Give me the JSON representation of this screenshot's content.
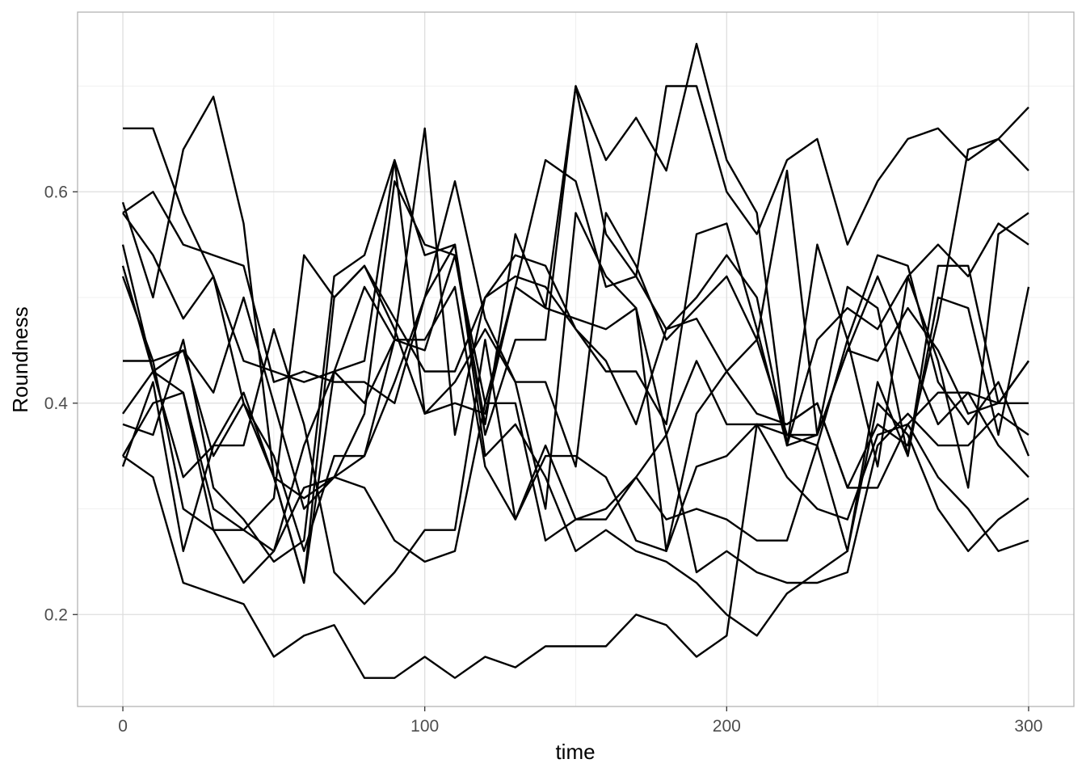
{
  "chart_data": {
    "type": "line",
    "xlabel": "time",
    "ylabel": "Roundness",
    "xlim": [
      -15,
      315
    ],
    "ylim": [
      0.113,
      0.77
    ],
    "x_ticks": [
      0,
      100,
      200,
      300
    ],
    "x_tick_labels": [
      "0",
      "100",
      "200",
      "300"
    ],
    "y_ticks": [
      0.2,
      0.4,
      0.6
    ],
    "y_tick_labels": [
      "0.2",
      "0.4",
      "0.6"
    ],
    "grid": true,
    "legend": "none",
    "line_color": "#000000",
    "x": [
      0,
      10,
      20,
      30,
      40,
      50,
      60,
      70,
      80,
      90,
      100,
      110,
      120,
      130,
      140,
      150,
      160,
      170,
      180,
      190,
      200,
      210,
      220,
      230,
      240,
      250,
      260,
      270,
      280,
      290,
      300
    ],
    "series": [
      {
        "values": [
          0.66,
          0.66,
          0.58,
          0.52,
          0.4,
          0.33,
          0.31,
          0.33,
          0.39,
          0.61,
          0.55,
          0.54,
          0.4,
          0.51,
          0.49,
          0.7,
          0.63,
          0.67,
          0.62,
          0.74,
          0.63,
          0.58,
          0.36,
          0.46,
          0.49,
          0.47,
          0.52,
          0.44,
          0.32,
          0.56,
          0.58
        ]
      },
      {
        "values": [
          0.59,
          0.5,
          0.64,
          0.69,
          0.57,
          0.33,
          0.23,
          0.5,
          0.53,
          0.47,
          0.39,
          0.4,
          0.39,
          0.51,
          0.63,
          0.61,
          0.51,
          0.52,
          0.7,
          0.7,
          0.6,
          0.56,
          0.63,
          0.65,
          0.55,
          0.61,
          0.65,
          0.66,
          0.63,
          0.65,
          0.62
        ]
      },
      {
        "values": [
          0.58,
          0.54,
          0.48,
          0.52,
          0.44,
          0.43,
          0.42,
          0.43,
          0.51,
          0.46,
          0.66,
          0.37,
          0.5,
          0.52,
          0.51,
          0.47,
          0.43,
          0.43,
          0.38,
          0.56,
          0.57,
          0.47,
          0.36,
          0.37,
          0.45,
          0.52,
          0.45,
          0.38,
          0.41,
          0.36,
          0.33
        ]
      },
      {
        "values": [
          0.52,
          0.44,
          0.3,
          0.28,
          0.23,
          0.26,
          0.36,
          0.43,
          0.44,
          0.63,
          0.39,
          0.42,
          0.47,
          0.42,
          0.42,
          0.34,
          0.58,
          0.53,
          0.46,
          0.49,
          0.52,
          0.46,
          0.37,
          0.36,
          0.46,
          0.34,
          0.52,
          0.55,
          0.52,
          0.57,
          0.55
        ]
      },
      {
        "values": [
          0.55,
          0.43,
          0.41,
          0.3,
          0.28,
          0.31,
          0.54,
          0.5,
          0.53,
          0.48,
          0.43,
          0.43,
          0.5,
          0.54,
          0.53,
          0.47,
          0.44,
          0.38,
          0.47,
          0.5,
          0.54,
          0.5,
          0.36,
          0.55,
          0.46,
          0.54,
          0.53,
          0.42,
          0.38,
          0.42,
          0.35
        ]
      },
      {
        "values": [
          0.53,
          0.43,
          0.45,
          0.35,
          0.4,
          0.35,
          0.26,
          0.35,
          0.35,
          0.42,
          0.5,
          0.61,
          0.48,
          0.42,
          0.3,
          0.58,
          0.52,
          0.49,
          0.37,
          0.44,
          0.38,
          0.38,
          0.37,
          0.37,
          0.45,
          0.44,
          0.49,
          0.45,
          0.39,
          0.4,
          0.44
        ]
      },
      {
        "values": [
          0.44,
          0.44,
          0.45,
          0.41,
          0.5,
          0.4,
          0.3,
          0.33,
          0.35,
          0.46,
          0.45,
          0.54,
          0.38,
          0.56,
          0.49,
          0.48,
          0.47,
          0.49,
          0.26,
          0.39,
          0.43,
          0.39,
          0.38,
          0.4,
          0.32,
          0.32,
          0.38,
          0.41,
          0.41,
          0.4,
          0.4
        ]
      },
      {
        "values": [
          0.35,
          0.33,
          0.23,
          0.22,
          0.21,
          0.16,
          0.18,
          0.19,
          0.14,
          0.14,
          0.16,
          0.14,
          0.16,
          0.15,
          0.17,
          0.17,
          0.17,
          0.2,
          0.19,
          0.16,
          0.18,
          0.38,
          0.38,
          0.4,
          0.32,
          0.38,
          0.36,
          0.48,
          0.64,
          0.65,
          0.68
        ]
      },
      {
        "values": [
          0.38,
          0.37,
          0.46,
          0.32,
          0.29,
          0.25,
          0.27,
          0.52,
          0.54,
          0.63,
          0.54,
          0.55,
          0.35,
          0.38,
          0.33,
          0.26,
          0.28,
          0.26,
          0.25,
          0.23,
          0.2,
          0.18,
          0.22,
          0.24,
          0.26,
          0.4,
          0.37,
          0.3,
          0.26,
          0.29,
          0.31
        ]
      },
      {
        "values": [
          0.34,
          0.42,
          0.26,
          0.36,
          0.36,
          0.47,
          0.38,
          0.24,
          0.21,
          0.24,
          0.28,
          0.28,
          0.46,
          0.29,
          0.35,
          0.35,
          0.33,
          0.27,
          0.26,
          0.34,
          0.35,
          0.38,
          0.33,
          0.3,
          0.29,
          0.37,
          0.38,
          0.33,
          0.3,
          0.26,
          0.27
        ]
      },
      {
        "values": [
          0.39,
          0.43,
          0.33,
          0.36,
          0.41,
          0.33,
          0.23,
          0.43,
          0.4,
          0.46,
          0.46,
          0.51,
          0.34,
          0.29,
          0.36,
          0.29,
          0.3,
          0.33,
          0.29,
          0.3,
          0.29,
          0.27,
          0.27,
          0.36,
          0.26,
          0.42,
          0.35,
          0.5,
          0.49,
          0.37,
          0.51
        ]
      },
      {
        "values": [
          0.35,
          0.4,
          0.41,
          0.28,
          0.28,
          0.26,
          0.32,
          0.33,
          0.32,
          0.27,
          0.25,
          0.26,
          0.4,
          0.4,
          0.27,
          0.29,
          0.29,
          0.33,
          0.37,
          0.24,
          0.26,
          0.24,
          0.23,
          0.23,
          0.24,
          0.36,
          0.39,
          0.36,
          0.36,
          0.39,
          0.37
        ]
      },
      {
        "values": [
          0.58,
          0.6,
          0.55,
          0.54,
          0.53,
          0.42,
          0.43,
          0.42,
          0.42,
          0.4,
          0.5,
          0.55,
          0.37,
          0.46,
          0.46,
          0.7,
          0.56,
          0.52,
          0.47,
          0.48,
          0.43,
          0.46,
          0.62,
          0.37,
          0.51,
          0.49,
          0.35,
          0.53,
          0.53,
          0.4,
          0.44
        ]
      }
    ]
  }
}
